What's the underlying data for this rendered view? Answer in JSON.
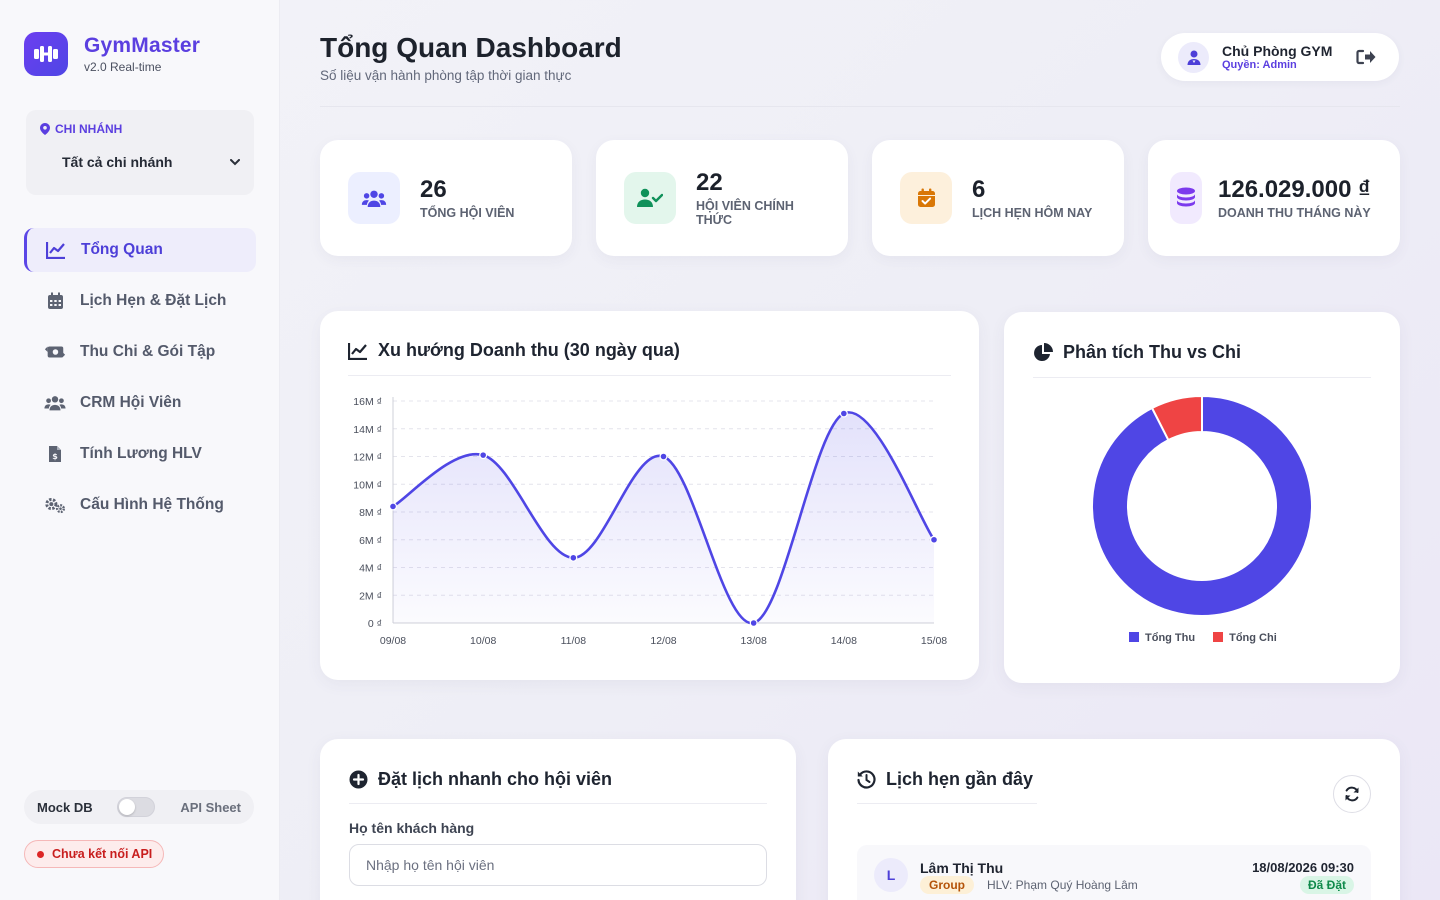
{
  "brand": {
    "name": "GymMaster",
    "version": "v2.0 Real-time",
    "logo_icon": "dumbbell-icon",
    "accent": "#5b3fe0"
  },
  "branch": {
    "label": "CHI NHÁNH",
    "selected": "Tất cả chi nhánh"
  },
  "nav": {
    "items": [
      {
        "label": "Tổng Quan",
        "icon": "chart-line-icon",
        "active": true
      },
      {
        "label": "Lịch Hẹn & Đặt Lịch",
        "icon": "calendar-icon",
        "active": false
      },
      {
        "label": "Thu Chi & Gói Tập",
        "icon": "money-exchange-icon",
        "active": false
      },
      {
        "label": "CRM Hội Viên",
        "icon": "users-icon",
        "active": false
      },
      {
        "label": "Tính Lương HLV",
        "icon": "invoice-icon",
        "active": false
      },
      {
        "label": "Cấu Hình Hệ Thống",
        "icon": "gears-icon",
        "active": false
      }
    ]
  },
  "datasource": {
    "left_label": "Mock DB",
    "right_label": "API Sheet",
    "api_status": "Chưa kết nối API"
  },
  "header": {
    "title": "Tổng Quan Dashboard",
    "subtitle": "Số liệu vận hành phòng tập thời gian thực"
  },
  "user": {
    "name": "Chủ Phòng GYM",
    "role": "Quyền: Admin"
  },
  "stats": [
    {
      "value": "26",
      "label": "TỔNG HỘI VIÊN",
      "icon": "users-icon",
      "color": "#4f46e5",
      "bg": "#ecefff"
    },
    {
      "value": "22",
      "label": "HỘI VIÊN CHÍNH THỨC",
      "icon": "user-check-icon",
      "color": "#10915a",
      "bg": "#e3f6ec"
    },
    {
      "value": "6",
      "label": "LỊCH HẸN HÔM NAY",
      "icon": "calendar-check-icon",
      "color": "#d97706",
      "bg": "#fdf0dc"
    },
    {
      "value": "126.029.000 ₫",
      "label": "DOANH THU THÁNG NÀY",
      "icon": "coins-icon",
      "color": "#7c3aed",
      "bg": "#f1eafe"
    }
  ],
  "revenue_card": {
    "title": "Xu hướng Doanh thu (30 ngày qua)"
  },
  "split_card": {
    "title": "Phân tích Thu vs Chi"
  },
  "chart_data": [
    {
      "type": "line",
      "title": "Xu hướng Doanh thu (30 ngày qua)",
      "categories": [
        "09/08",
        "10/08",
        "11/08",
        "12/08",
        "13/08",
        "14/08",
        "15/08"
      ],
      "series": [
        {
          "values": [
            8.4,
            12.1,
            4.7,
            12.0,
            0,
            15.1,
            6.0
          ],
          "color": "#4f46e5"
        }
      ],
      "y_ticks": [
        "0 ₫",
        "2M ₫",
        "4M ₫",
        "6M ₫",
        "8M ₫",
        "10M ₫",
        "12M ₫",
        "14M ₫",
        "16M ₫"
      ],
      "ylim": [
        0,
        16
      ],
      "grid": true,
      "fill": true
    },
    {
      "type": "pie",
      "title": "Phân tích Thu vs Chi",
      "donut": true,
      "categories": [
        "Tổng Thu",
        "Tổng Chi"
      ],
      "values": [
        92.5,
        7.5
      ],
      "colors": [
        "#4f46e5",
        "#ef4444"
      ],
      "legend": "bottom"
    }
  ],
  "quick_booking": {
    "title": "Đặt lịch nhanh cho hội viên",
    "name_label": "Họ tên khách hàng",
    "name_placeholder": "Nhập họ tên hội viên"
  },
  "recent": {
    "title": "Lịch hẹn gần đây",
    "items": [
      {
        "initial": "L",
        "name": "Lâm Thị Thu",
        "type": "Group",
        "coach": "HLV: Phạm Quý Hoàng Lâm",
        "time": "18/08/2026 09:30",
        "status": "Đã Đặt"
      }
    ]
  }
}
